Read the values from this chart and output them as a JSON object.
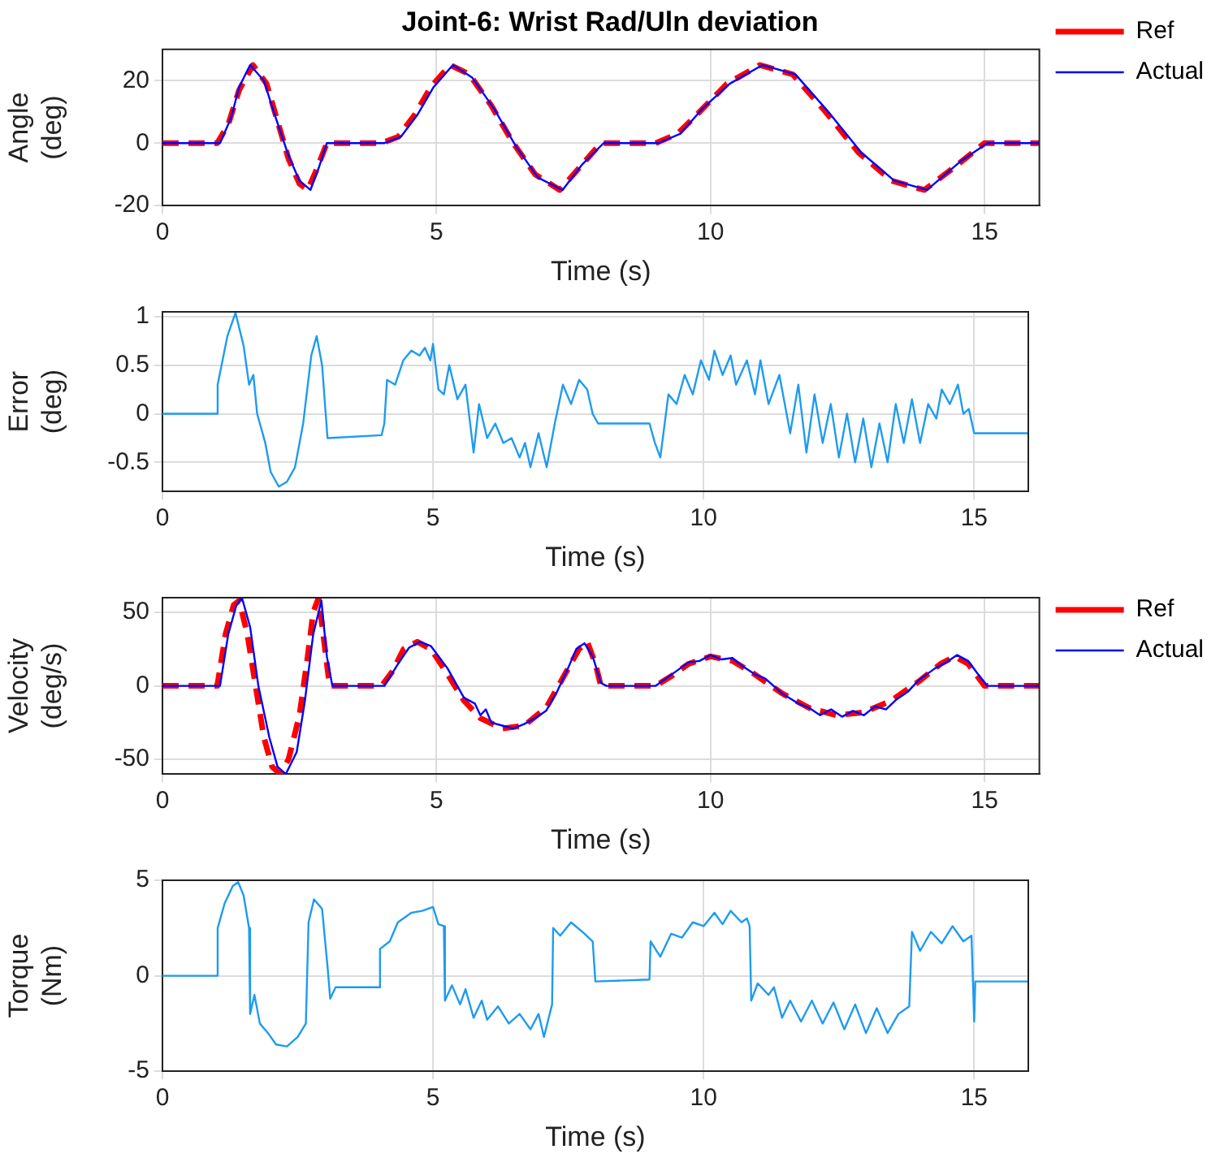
{
  "chart_data": [
    {
      "type": "line",
      "title": "Joint-6: Wrist Rad/Uln deviation",
      "xlabel": "Time (s)",
      "ylabel": "Angle (deg)",
      "xlim": [
        0,
        16
      ],
      "xticks": [
        0,
        5,
        10,
        15
      ],
      "ylim": [
        -20,
        30
      ],
      "yticks": [
        -20,
        0,
        20
      ],
      "grid": true,
      "legend": "right",
      "series": [
        {
          "name": "Ref",
          "color": "#ff0000",
          "line_style": "dashed",
          "x": [
            0,
            1.0,
            1.2,
            1.4,
            1.65,
            1.9,
            2.1,
            2.3,
            2.5,
            2.65,
            2.8,
            3.0,
            4.0,
            4.3,
            4.6,
            4.9,
            5.25,
            5.6,
            6.0,
            6.4,
            6.8,
            7.25,
            7.6,
            8.0,
            9.0,
            9.4,
            9.8,
            10.3,
            10.9,
            11.5,
            12.1,
            12.7,
            13.3,
            13.9,
            14.5,
            15.0,
            16
          ],
          "values": [
            0,
            0,
            6,
            17,
            25,
            19,
            7,
            -5,
            -13,
            -15,
            -9,
            0,
            0,
            2,
            9,
            18,
            25,
            22,
            12,
            0,
            -10,
            -15,
            -8,
            0,
            0,
            3,
            10,
            19,
            25,
            22,
            10,
            -3,
            -12,
            -15,
            -7,
            0,
            0
          ]
        },
        {
          "name": "Actual",
          "color": "#0000ff",
          "line_style": "solid",
          "x": [
            0,
            1.05,
            1.25,
            1.4,
            1.6,
            1.85,
            2.05,
            2.3,
            2.5,
            2.7,
            2.85,
            3.0,
            4.05,
            4.35,
            4.65,
            4.95,
            5.3,
            5.65,
            6.05,
            6.45,
            6.85,
            7.3,
            7.65,
            8.05,
            9.05,
            9.45,
            9.85,
            10.35,
            10.95,
            11.55,
            12.15,
            12.75,
            13.35,
            13.95,
            14.55,
            15.05,
            16
          ],
          "values": [
            0,
            0,
            8,
            18,
            25,
            20,
            9,
            -4,
            -12,
            -15,
            -8,
            0,
            0,
            2,
            9,
            18,
            25,
            21,
            11,
            -1,
            -11,
            -15,
            -7,
            0,
            0,
            3,
            11,
            19,
            25,
            22,
            10,
            -3,
            -12,
            -15,
            -6,
            0,
            0
          ]
        }
      ]
    },
    {
      "type": "line",
      "xlabel": "Time (s)",
      "ylabel": "Error (deg)",
      "xlim": [
        0,
        16
      ],
      "xticks": [
        0,
        5,
        10,
        15
      ],
      "ylim": [
        -0.8,
        1.05
      ],
      "yticks": [
        -0.5,
        0,
        0.5,
        1
      ],
      "grid": true,
      "series": [
        {
          "color": "#1e9bf0",
          "line_style": "solid",
          "x": [
            0,
            1.0,
            1.02,
            1.2,
            1.35,
            1.5,
            1.6,
            1.68,
            1.75,
            1.9,
            2.0,
            2.15,
            2.3,
            2.45,
            2.6,
            2.75,
            2.85,
            2.95,
            3.05,
            4.05,
            4.1,
            4.15,
            4.3,
            4.45,
            4.6,
            4.75,
            4.85,
            4.95,
            5.0,
            5.1,
            5.2,
            5.3,
            5.45,
            5.6,
            5.75,
            5.85,
            6.0,
            6.15,
            6.3,
            6.45,
            6.6,
            6.7,
            6.8,
            6.95,
            7.1,
            7.25,
            7.4,
            7.55,
            7.7,
            7.85,
            7.95,
            8.05,
            9.0,
            9.1,
            9.2,
            9.35,
            9.5,
            9.65,
            9.8,
            9.95,
            10.1,
            10.2,
            10.35,
            10.5,
            10.6,
            10.8,
            10.95,
            11.05,
            11.2,
            11.4,
            11.6,
            11.75,
            11.9,
            12.05,
            12.2,
            12.35,
            12.5,
            12.65,
            12.8,
            12.95,
            13.1,
            13.25,
            13.4,
            13.55,
            13.7,
            13.85,
            14.0,
            14.15,
            14.3,
            14.4,
            14.55,
            14.7,
            14.8,
            14.9,
            15.0,
            16
          ],
          "values": [
            0,
            0,
            0.3,
            0.8,
            1.04,
            0.7,
            0.3,
            0.4,
            0.0,
            -0.3,
            -0.6,
            -0.75,
            -0.7,
            -0.55,
            -0.1,
            0.6,
            0.8,
            0.5,
            -0.25,
            -0.22,
            -0.1,
            0.35,
            0.3,
            0.55,
            0.65,
            0.6,
            0.68,
            0.55,
            0.72,
            0.25,
            0.2,
            0.5,
            0.15,
            0.3,
            -0.4,
            0.1,
            -0.25,
            -0.1,
            -0.3,
            -0.25,
            -0.45,
            -0.3,
            -0.55,
            -0.2,
            -0.55,
            -0.1,
            0.3,
            0.1,
            0.35,
            0.25,
            0.0,
            -0.1,
            -0.1,
            -0.3,
            -0.45,
            0.2,
            0.1,
            0.4,
            0.2,
            0.55,
            0.35,
            0.65,
            0.4,
            0.6,
            0.3,
            0.55,
            0.2,
            0.55,
            0.1,
            0.4,
            -0.2,
            0.3,
            -0.4,
            0.2,
            -0.3,
            0.1,
            -0.45,
            0.0,
            -0.5,
            -0.05,
            -0.55,
            -0.1,
            -0.5,
            0.1,
            -0.3,
            0.15,
            -0.3,
            0.1,
            -0.05,
            0.25,
            0.1,
            0.3,
            0.0,
            0.05,
            -0.2,
            -0.2
          ]
        }
      ]
    },
    {
      "type": "line",
      "xlabel": "Time (s)",
      "ylabel": "Velocity (deg/s)",
      "xlim": [
        0,
        16
      ],
      "xticks": [
        0,
        5,
        10,
        15
      ],
      "ylim": [
        -60,
        60
      ],
      "yticks": [
        -50,
        0,
        50
      ],
      "grid": true,
      "legend": "right",
      "series": [
        {
          "name": "Ref",
          "color": "#ff0000",
          "line_style": "dashed",
          "x": [
            0,
            1.0,
            1.15,
            1.3,
            1.4,
            1.55,
            1.7,
            1.85,
            2.0,
            2.15,
            2.3,
            2.5,
            2.65,
            2.75,
            2.85,
            2.95,
            3.05,
            4.0,
            4.2,
            4.4,
            4.65,
            4.9,
            5.2,
            5.5,
            5.8,
            6.2,
            6.6,
            7.0,
            7.3,
            7.6,
            7.75,
            7.9,
            8.0,
            9.0,
            9.3,
            9.6,
            10.0,
            10.4,
            10.8,
            11.3,
            11.8,
            12.3,
            12.8,
            13.3,
            13.8,
            14.2,
            14.45,
            14.7,
            15.0,
            16
          ],
          "values": [
            0,
            0,
            35,
            55,
            58,
            35,
            0,
            -35,
            -55,
            -60,
            -50,
            -20,
            20,
            50,
            60,
            30,
            0,
            0,
            10,
            25,
            30,
            25,
            8,
            -10,
            -22,
            -29,
            -27,
            -15,
            5,
            25,
            30,
            15,
            0,
            0,
            7,
            15,
            20,
            17,
            8,
            -5,
            -15,
            -20,
            -18,
            -10,
            3,
            15,
            20,
            15,
            0,
            0
          ]
        },
        {
          "name": "Actual",
          "color": "#0000ff",
          "line_style": "solid",
          "x": [
            0,
            1.05,
            1.2,
            1.35,
            1.45,
            1.6,
            1.75,
            1.95,
            2.1,
            2.25,
            2.45,
            2.6,
            2.75,
            2.9,
            3.0,
            3.1,
            4.05,
            4.3,
            4.5,
            4.7,
            4.9,
            5.2,
            5.5,
            5.7,
            5.8,
            5.9,
            6.0,
            6.2,
            6.4,
            6.6,
            6.8,
            7.0,
            7.2,
            7.4,
            7.55,
            7.7,
            7.85,
            8.0,
            8.1,
            9.0,
            9.3,
            9.6,
            9.8,
            10.0,
            10.2,
            10.4,
            10.6,
            10.8,
            11.0,
            11.3,
            11.6,
            11.8,
            12.0,
            12.2,
            12.4,
            12.6,
            12.8,
            13.0,
            13.2,
            13.4,
            13.6,
            13.8,
            14.1,
            14.3,
            14.5,
            14.7,
            14.9,
            15.05,
            16
          ],
          "values": [
            0,
            0,
            35,
            55,
            60,
            40,
            0,
            -35,
            -55,
            -60,
            -45,
            -10,
            35,
            58,
            20,
            0,
            0,
            15,
            26,
            30,
            27,
            12,
            -8,
            -12,
            -20,
            -16,
            -25,
            -27,
            -29,
            -26,
            -22,
            -17,
            -4,
            12,
            25,
            29,
            20,
            2,
            0,
            0,
            8,
            16,
            17,
            21,
            18,
            19,
            13,
            8,
            5,
            -5,
            -12,
            -15,
            -20,
            -16,
            -21,
            -17,
            -20,
            -14,
            -16,
            -9,
            -4,
            4,
            12,
            16,
            21,
            17,
            7,
            0,
            0
          ]
        }
      ]
    },
    {
      "type": "line",
      "xlabel": "Time (s)",
      "ylabel": "Torque (Nm)",
      "xlim": [
        0,
        16
      ],
      "xticks": [
        0,
        5,
        10,
        15
      ],
      "ylim": [
        -5,
        5
      ],
      "yticks": [
        -5,
        0,
        5
      ],
      "grid": true,
      "series": [
        {
          "color": "#1e9bf0",
          "line_style": "solid",
          "x": [
            0,
            1.0,
            1.02,
            1.15,
            1.3,
            1.4,
            1.5,
            1.6,
            1.62,
            1.7,
            1.8,
            1.95,
            2.1,
            2.3,
            2.5,
            2.65,
            2.7,
            2.8,
            2.95,
            3.05,
            3.1,
            3.2,
            4.0,
            4.02,
            4.2,
            4.35,
            4.6,
            4.8,
            5.0,
            5.1,
            5.2,
            5.22,
            5.35,
            5.5,
            5.6,
            5.75,
            5.9,
            6.0,
            6.2,
            6.4,
            6.6,
            6.8,
            6.95,
            7.05,
            7.2,
            7.22,
            7.35,
            7.55,
            7.8,
            7.95,
            8.0,
            9.0,
            9.02,
            9.2,
            9.4,
            9.6,
            9.8,
            10.0,
            10.2,
            10.35,
            10.5,
            10.7,
            10.8,
            10.85,
            10.88,
            11.0,
            11.2,
            11.3,
            11.45,
            11.6,
            11.8,
            12.0,
            12.2,
            12.4,
            12.6,
            12.8,
            13.0,
            13.2,
            13.4,
            13.6,
            13.8,
            13.85,
            14.0,
            14.2,
            14.4,
            14.6,
            14.8,
            14.95,
            15.0,
            15.02,
            16
          ],
          "values": [
            0,
            0,
            2.5,
            3.8,
            4.7,
            4.9,
            4.2,
            2.5,
            -2.0,
            -1.0,
            -2.5,
            -3.0,
            -3.6,
            -3.7,
            -3.2,
            -2.5,
            2.8,
            4.0,
            3.5,
            0.5,
            -1.2,
            -0.6,
            -0.6,
            1.4,
            1.8,
            2.8,
            3.3,
            3.4,
            3.6,
            2.7,
            2.6,
            -1.3,
            -0.5,
            -1.5,
            -0.7,
            -2.2,
            -1.3,
            -2.3,
            -1.6,
            -2.5,
            -2.0,
            -2.8,
            -2.0,
            -3.2,
            -1.5,
            2.5,
            2.1,
            2.8,
            2.2,
            1.8,
            -0.3,
            -0.2,
            1.8,
            1.0,
            2.2,
            2.0,
            2.8,
            2.6,
            3.3,
            2.7,
            3.4,
            2.8,
            3.0,
            2.6,
            -1.3,
            -0.4,
            -1.0,
            -0.6,
            -2.2,
            -1.3,
            -2.4,
            -1.3,
            -2.5,
            -1.4,
            -2.8,
            -1.5,
            -3.0,
            -1.7,
            -3.0,
            -2.0,
            -1.6,
            2.3,
            1.3,
            2.3,
            1.7,
            2.6,
            1.8,
            2.1,
            -2.4,
            -0.3,
            -0.3
          ]
        }
      ]
    }
  ]
}
